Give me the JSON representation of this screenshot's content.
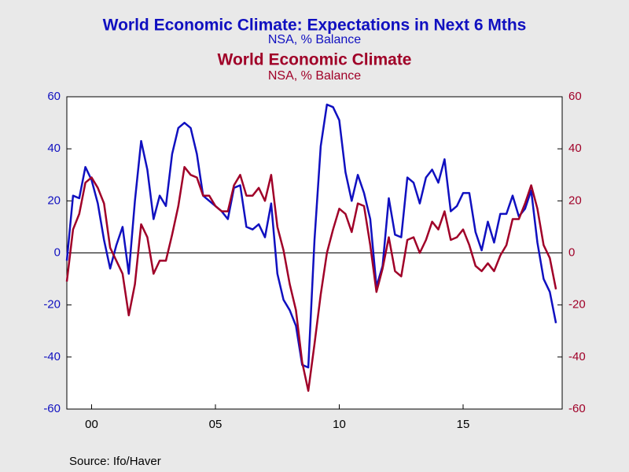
{
  "chart_data": {
    "type": "line",
    "title": "World Economic Climate: Expectations in Next 6 Mths",
    "subtitle": "NSA, % Balance",
    "title2": "World Economic Climate",
    "subtitle2": "NSA, % Balance",
    "source": "Source:  Ifo/Haver",
    "x": [
      1999,
      1999.25,
      1999.5,
      1999.75,
      2000,
      2000.25,
      2000.5,
      2000.75,
      2001,
      2001.25,
      2001.5,
      2001.75,
      2002,
      2002.25,
      2002.5,
      2002.75,
      2003,
      2003.25,
      2003.5,
      2003.75,
      2004,
      2004.25,
      2004.5,
      2004.75,
      2005,
      2005.25,
      2005.5,
      2005.75,
      2006,
      2006.25,
      2006.5,
      2006.75,
      2007,
      2007.25,
      2007.5,
      2007.75,
      2008,
      2008.25,
      2008.5,
      2008.75,
      2009,
      2009.25,
      2009.5,
      2009.75,
      2010,
      2010.25,
      2010.5,
      2010.75,
      2011,
      2011.25,
      2011.5,
      2011.75,
      2012,
      2012.25,
      2012.5,
      2012.75,
      2013,
      2013.25,
      2013.5,
      2013.75,
      2014,
      2014.25,
      2014.5,
      2014.75,
      2015,
      2015.25,
      2015.5,
      2015.75,
      2016,
      2016.25,
      2016.5,
      2016.75,
      2017,
      2017.25,
      2017.5,
      2017.75,
      2018,
      2018.25,
      2018.5,
      2018.75
    ],
    "series": [
      {
        "name": "World Economic Climate: Expectations in Next 6 Mths",
        "color": "#1010c0",
        "axis": "y",
        "values": [
          -3,
          22,
          21,
          33,
          28,
          19,
          5,
          -6,
          3,
          10,
          -8,
          20,
          43,
          32,
          13,
          22,
          18,
          38,
          48,
          50,
          48,
          38,
          22,
          20,
          18,
          16,
          13,
          25,
          26,
          10,
          9,
          11,
          6,
          19,
          -8,
          -18,
          -22,
          -28,
          -43,
          -44,
          5,
          41,
          57,
          56,
          51,
          31,
          20,
          30,
          23,
          13,
          -13,
          -5,
          21,
          7,
          6,
          29,
          27,
          19,
          29,
          32,
          27,
          36,
          16,
          18,
          23,
          23,
          8,
          1,
          12,
          4,
          15,
          15,
          22,
          14,
          17,
          24,
          4,
          -10,
          -15,
          -27
        ]
      },
      {
        "name": "World Economic Climate",
        "color": "#a00028",
        "axis": "y2",
        "values": [
          -11,
          9,
          15,
          27,
          29,
          25,
          19,
          2,
          -3,
          -8,
          -24,
          -12,
          11,
          6,
          -8,
          -3,
          -3,
          7,
          18,
          33,
          30,
          29,
          22,
          22,
          18,
          16,
          16,
          26,
          30,
          22,
          22,
          25,
          20,
          30,
          10,
          1,
          -12,
          -22,
          -42,
          -53,
          -35,
          -16,
          0,
          9,
          17,
          15,
          8,
          19,
          18,
          3,
          -15,
          -6,
          6,
          -7,
          -9,
          5,
          6,
          0,
          5,
          12,
          9,
          16,
          5,
          6,
          9,
          3,
          -5,
          -7,
          -4,
          -7,
          -1,
          3,
          13,
          13,
          19,
          26,
          17,
          3,
          -2,
          -14
        ]
      }
    ],
    "xlim": [
      1999,
      2019
    ],
    "xticks": [
      {
        "value": 2000,
        "label": "00"
      },
      {
        "value": 2005,
        "label": "05"
      },
      {
        "value": 2010,
        "label": "10"
      },
      {
        "value": 2015,
        "label": "15"
      }
    ],
    "ylim": [
      -60,
      60
    ],
    "yticks": [
      -60,
      -40,
      -20,
      0,
      20,
      40,
      60
    ],
    "y2lim": [
      -60,
      60
    ],
    "y2ticks": [
      -60,
      -40,
      -20,
      0,
      20,
      40,
      60
    ]
  }
}
